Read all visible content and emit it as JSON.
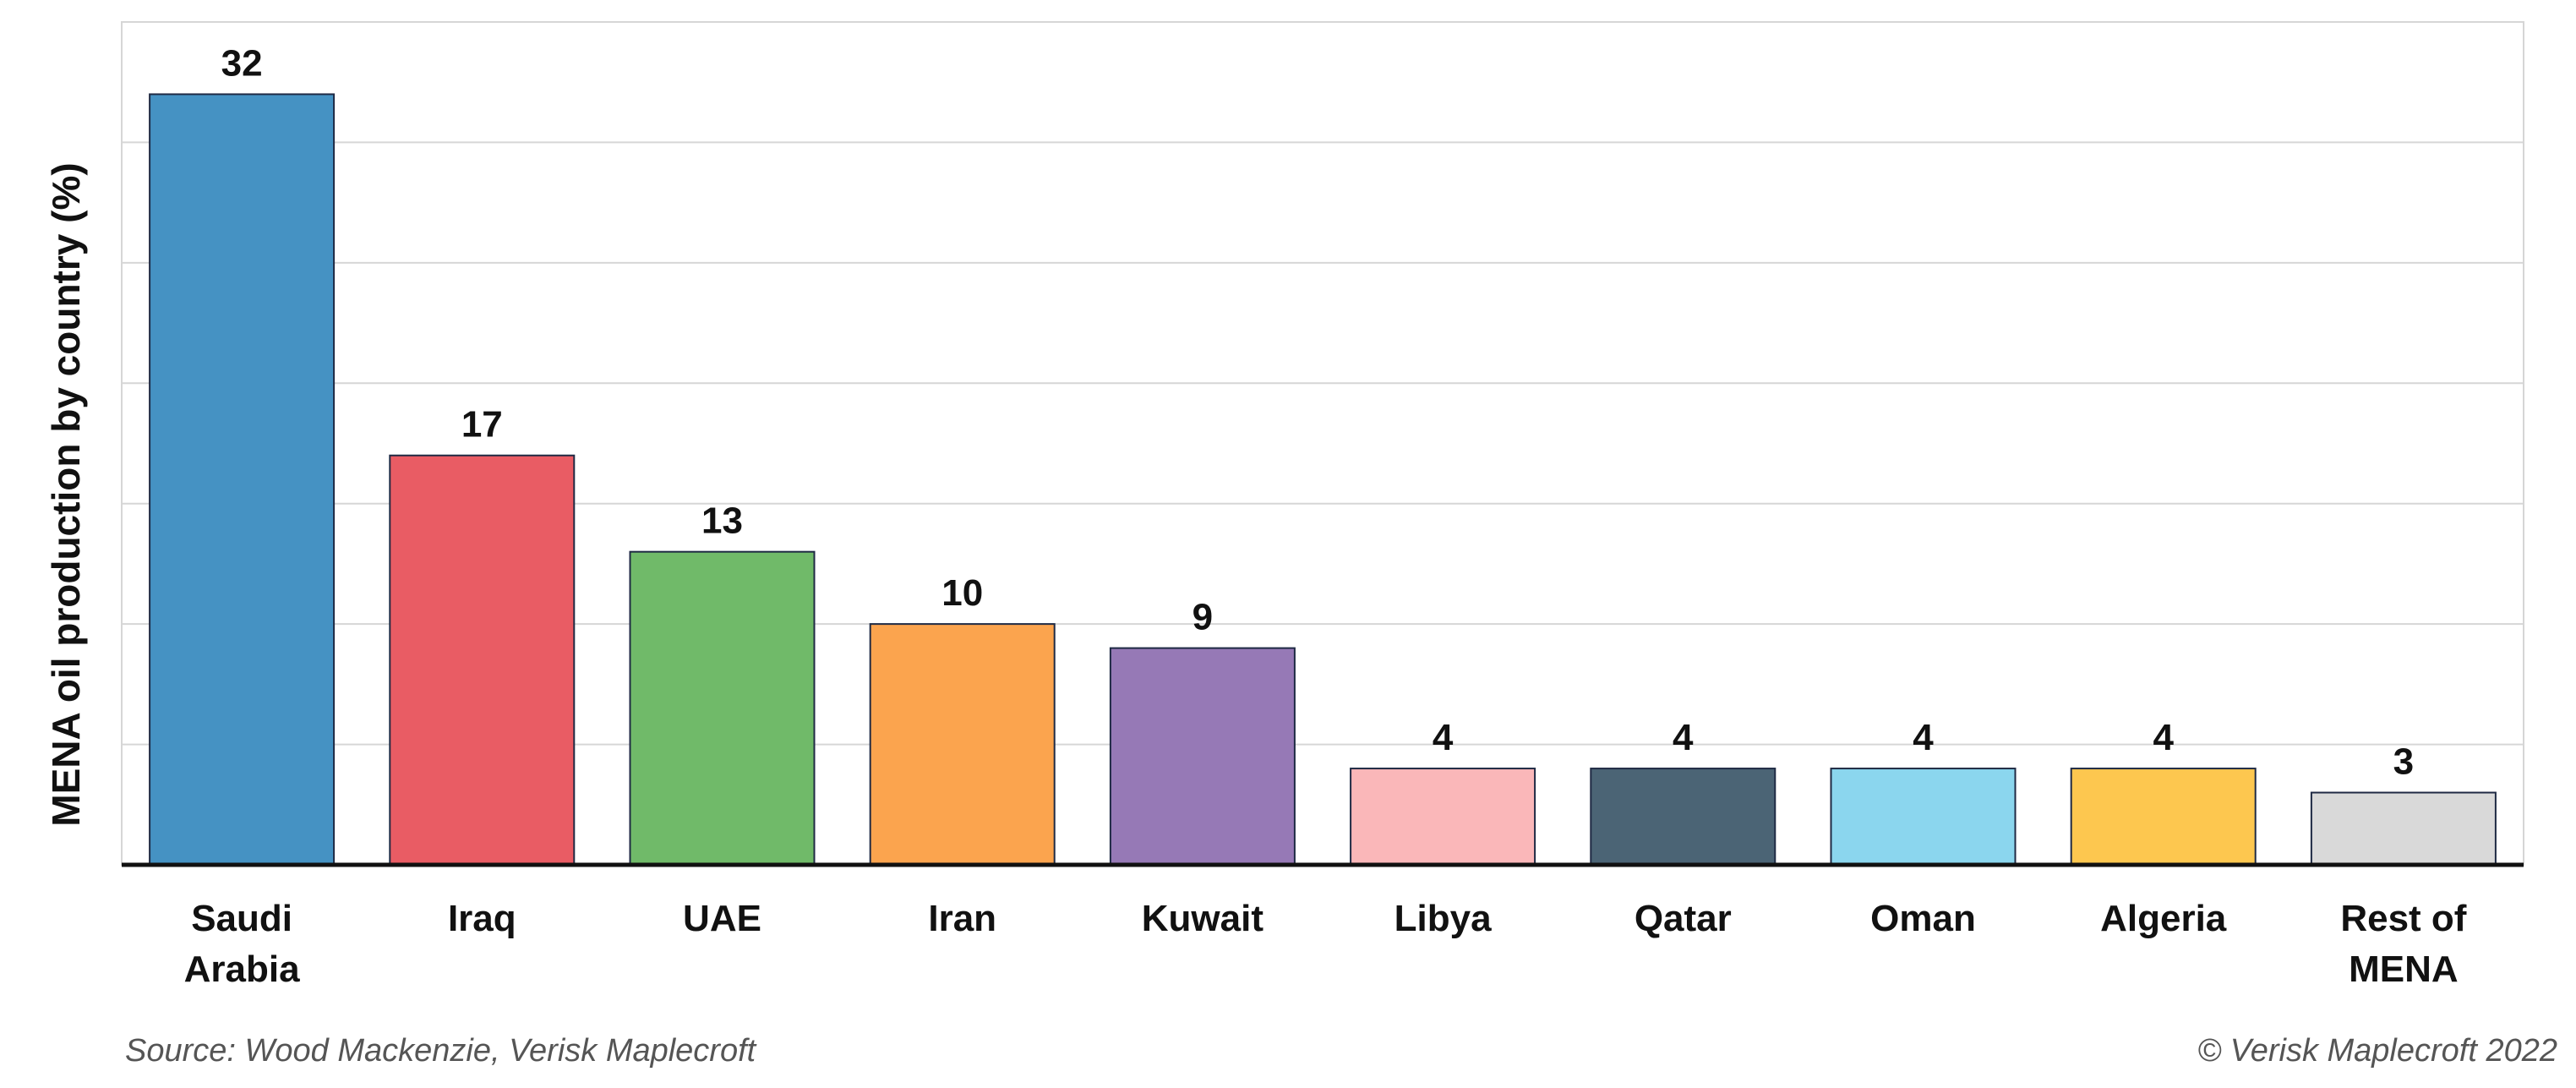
{
  "chart_data": {
    "type": "bar",
    "title": "",
    "xlabel": "",
    "ylabel": "MENA oil production by country (%)",
    "ylim": [
      0,
      35
    ],
    "grid": true,
    "categories": [
      [
        "Saudi",
        "Arabia"
      ],
      [
        "Iraq"
      ],
      [
        "UAE"
      ],
      [
        "Iran"
      ],
      [
        "Kuwait"
      ],
      [
        "Libya"
      ],
      [
        "Qatar"
      ],
      [
        "Oman"
      ],
      [
        "Algeria"
      ],
      [
        "Rest of",
        "MENA"
      ]
    ],
    "values": [
      32,
      17,
      13,
      10,
      9,
      4,
      4,
      4,
      4,
      3
    ],
    "colors": [
      "#4592c3",
      "#e95c64",
      "#70ba69",
      "#fba44e",
      "#9679b6",
      "#fab7b9",
      "#4b6475",
      "#8bd6ee",
      "#fdc74f",
      "#d9d9d9"
    ]
  },
  "footer": {
    "source": "Source: Wood Mackenzie, Verisk Maplecroft",
    "copyright": "© Verisk Maplecroft 2022"
  }
}
